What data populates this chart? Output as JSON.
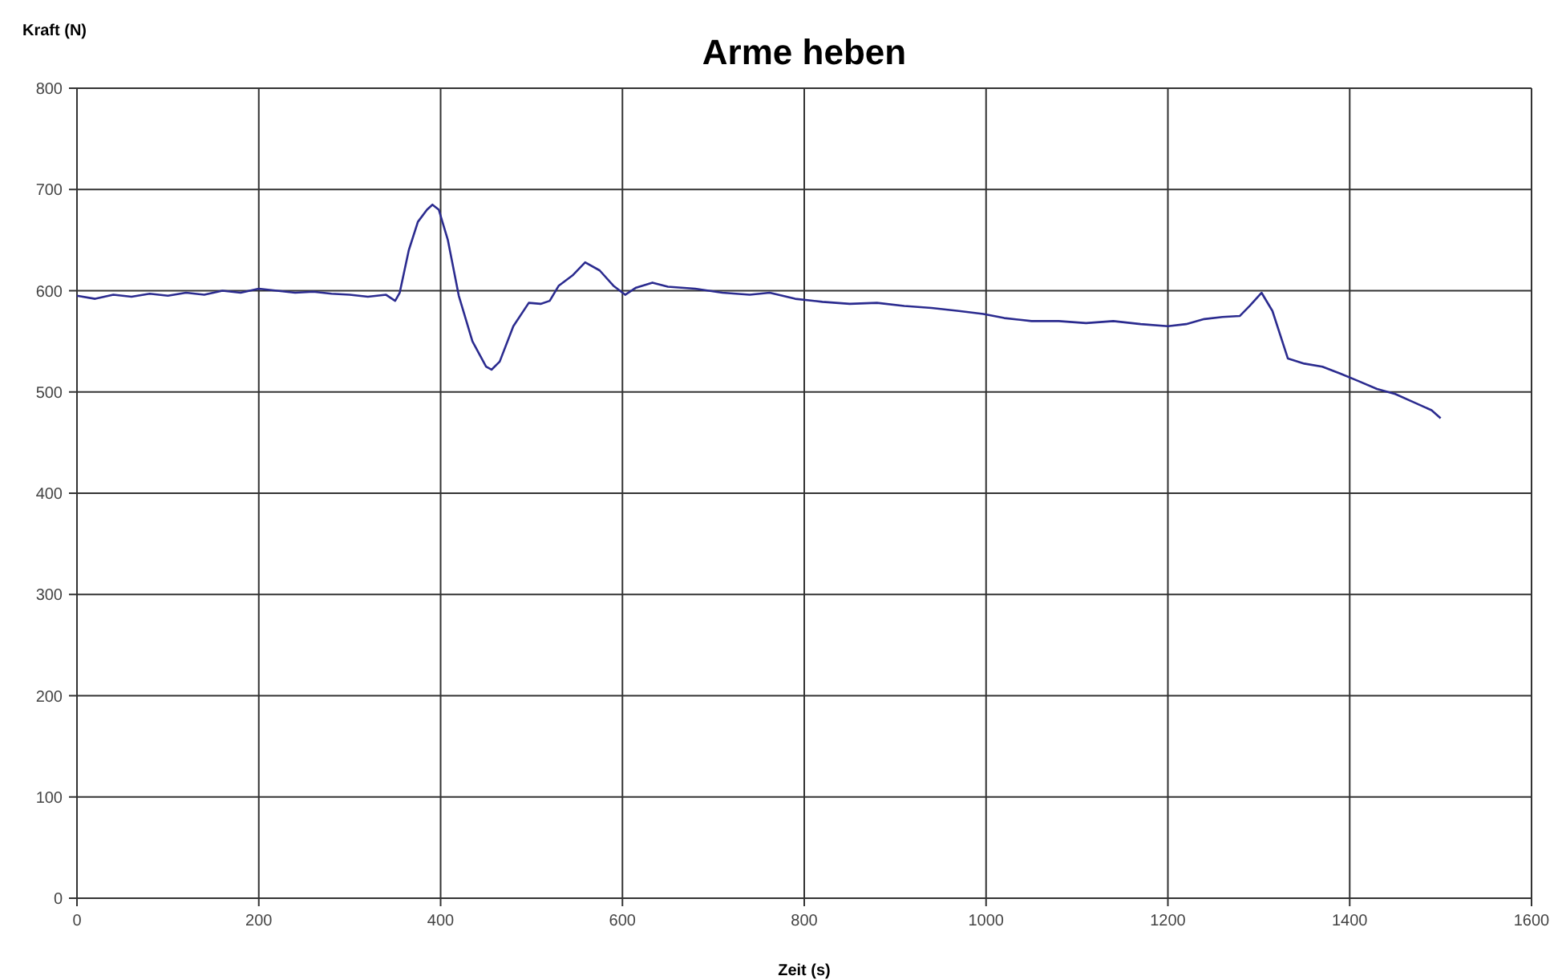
{
  "chart_data": {
    "type": "line",
    "title": "Arme heben",
    "xlabel": "Zeit (s)",
    "ylabel": "Kraft (N)",
    "xlim": [
      0,
      1600
    ],
    "xticks": [
      0,
      200,
      400,
      600,
      800,
      1000,
      1200,
      1400,
      1600
    ],
    "ylim": [
      0,
      800
    ],
    "yticks": [
      0,
      100,
      200,
      300,
      400,
      500,
      600,
      700,
      800
    ],
    "grid": true,
    "marker": "none",
    "line_style": "solid",
    "series": [
      {
        "color": "#2b2b8f",
        "x": [
          0,
          20,
          40,
          60,
          80,
          100,
          120,
          140,
          160,
          180,
          200,
          220,
          240,
          260,
          280,
          300,
          320,
          340,
          350,
          355,
          365,
          375,
          385,
          391,
          398,
          408,
          420,
          435,
          450,
          456,
          465,
          480,
          497,
          510,
          520,
          530,
          545,
          559,
          575,
          590,
          603,
          615,
          633,
          650,
          680,
          710,
          740,
          762,
          790,
          820,
          850,
          880,
          910,
          940,
          970,
          997,
          1020,
          1050,
          1080,
          1110,
          1140,
          1170,
          1200,
          1220,
          1240,
          1260,
          1279,
          1290,
          1303,
          1315,
          1332,
          1350,
          1370,
          1390,
          1409,
          1430,
          1450,
          1470,
          1490,
          1500
        ],
        "values": [
          595,
          592,
          596,
          594,
          597,
          595,
          598,
          596,
          600,
          598,
          602,
          600,
          598,
          599,
          597,
          596,
          594,
          596,
          590,
          598,
          640,
          668,
          680,
          685,
          680,
          650,
          595,
          550,
          525,
          522,
          530,
          565,
          588,
          587,
          590,
          605,
          615,
          628,
          620,
          605,
          596,
          603,
          608,
          604,
          602,
          598,
          596,
          598,
          592,
          589,
          587,
          588,
          585,
          583,
          580,
          577,
          573,
          570,
          570,
          568,
          570,
          567,
          565,
          567,
          572,
          574,
          575,
          585,
          598,
          580,
          533,
          528,
          525,
          518,
          511,
          503,
          498,
          490,
          482,
          474
        ]
      }
    ]
  }
}
